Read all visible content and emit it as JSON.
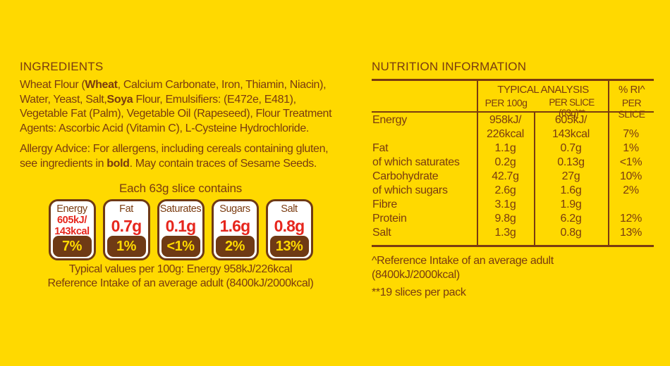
{
  "colors": {
    "background": "#FFD900",
    "brown_text": "#7A3B10",
    "pill_brown": "#6F3A15",
    "value_red": "#E6261D",
    "badge_white": "#FFFFFF"
  },
  "ingredients": {
    "heading": "INGREDIENTS",
    "paragraphs": [
      {
        "lines": [
          [
            {
              "t": "Wheat Flour ("
            },
            {
              "t": "Wheat",
              "b": true
            },
            {
              "t": ", Calcium Carbonate, Iron, Thiamin, Niacin),"
            }
          ],
          [
            {
              "t": "Water, Yeast, Salt,"
            },
            {
              "t": "Soya",
              "b": true
            },
            {
              "t": " Flour, Emulsifiers: (E472e, E481),"
            }
          ],
          [
            {
              "t": "Vegetable Fat (Palm), Vegetable Oil (Rapeseed), Flour Treatment"
            }
          ],
          [
            {
              "t": "Agents: Ascorbic Acid (Vitamin C), L-Cysteine Hydrochloride."
            }
          ]
        ]
      },
      {
        "lines": [
          [
            {
              "t": "Allergy Advice: For allergens, including cereals containing gluten,"
            }
          ],
          [
            {
              "t": "see ingredients in "
            },
            {
              "t": "bold",
              "b": true
            },
            {
              "t": ". May contain traces of Sesame Seeds."
            }
          ]
        ]
      }
    ]
  },
  "slice_panel": {
    "title": "Each 63g slice contains",
    "badges": [
      {
        "label": "Energy",
        "value": "605kJ/\n143kcal",
        "ri": "7%",
        "small": true
      },
      {
        "label": "Fat",
        "value": "0.7g",
        "ri": "1%"
      },
      {
        "label": "Saturates",
        "value": "0.1g",
        "ri": "<1%"
      },
      {
        "label": "Sugars",
        "value": "1.6g",
        "ri": "2%"
      },
      {
        "label": "Salt",
        "value": "0.8g",
        "ri": "13%"
      }
    ],
    "footnote": "Typical values per 100g: Energy 958kJ/226kcal\nReference Intake of an average adult (8400kJ/2000kcal)"
  },
  "nutrition": {
    "heading": "NUTRITION INFORMATION",
    "header": {
      "group": "TYPICAL ANALYSIS",
      "col_per100": "PER 100g",
      "col_perslice": "PER SLICE (63g)**",
      "col_ri_line1": "% RI^",
      "col_ri_line2": "PER SLICE"
    },
    "rows": [
      {
        "label": "Energy",
        "per100": "958kJ/\n226kcal",
        "perslice": "605kJ/\n143kcal",
        "ri": "7%",
        "tall": true
      },
      {
        "label": "Fat",
        "per100": "1.1g",
        "perslice": "0.7g",
        "ri": "1%"
      },
      {
        "label": "of which saturates",
        "per100": "0.2g",
        "perslice": "0.13g",
        "ri": "<1%"
      },
      {
        "label": "Carbohydrate",
        "per100": "42.7g",
        "perslice": "27g",
        "ri": "10%"
      },
      {
        "label": "of which sugars",
        "per100": "2.6g",
        "perslice": "1.6g",
        "ri": "2%"
      },
      {
        "label": "Fibre",
        "per100": "3.1g",
        "perslice": "1.9g",
        "ri": ""
      },
      {
        "label": "Protein",
        "per100": "9.8g",
        "perslice": "6.2g",
        "ri": "12%"
      },
      {
        "label": "Salt",
        "per100": "1.3g",
        "perslice": "0.8g",
        "ri": "13%"
      }
    ],
    "footnote_reference": "^Reference Intake of an average adult\n(8400kJ/2000kcal)",
    "footnote_slices": "**19 slices per pack"
  }
}
